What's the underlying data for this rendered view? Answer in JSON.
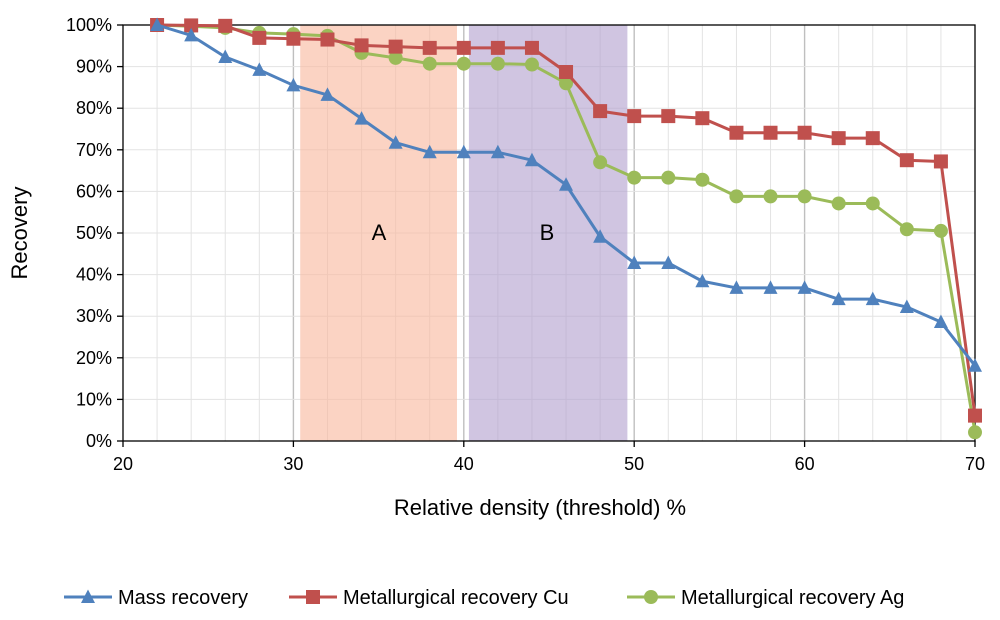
{
  "chart_data": {
    "type": "line",
    "title": "",
    "xlabel": "Relative density (threshold) %",
    "ylabel": "Recovery",
    "xlim": [
      20,
      70
    ],
    "ylim": [
      0,
      100
    ],
    "x_ticks": [
      20,
      30,
      40,
      50,
      60,
      70
    ],
    "x_tick_labels": [
      "20",
      "30",
      "40",
      "50",
      "60",
      "70"
    ],
    "y_ticks": [
      0,
      10,
      20,
      30,
      40,
      50,
      60,
      70,
      80,
      90,
      100
    ],
    "y_tick_labels": [
      "0%",
      "10%",
      "20%",
      "30%",
      "40%",
      "50%",
      "60%",
      "70%",
      "80%",
      "90%",
      "100%"
    ],
    "grid": true,
    "legend_position": "bottom",
    "x": [
      22,
      24,
      26,
      28,
      30,
      32,
      34,
      36,
      38,
      40,
      42,
      44,
      46,
      48,
      50,
      52,
      54,
      56,
      58,
      60,
      62,
      64,
      66,
      68,
      70
    ],
    "series": [
      {
        "name": "Mass recovery",
        "color": "#4f81bd",
        "marker": "triangle",
        "values": [
          100,
          97.5,
          92.3,
          89.2,
          85.5,
          83.2,
          77.5,
          71.7,
          69.4,
          69.4,
          69.4,
          67.5,
          61.6,
          49.1,
          42.8,
          42.8,
          38.4,
          36.8,
          36.8,
          36.8,
          34.1,
          34.1,
          32.2,
          28.6,
          18.1
        ]
      },
      {
        "name": "Metallurgical recovery Cu",
        "color": "#c0504d",
        "marker": "square",
        "values": [
          100,
          99.9,
          99.8,
          96.9,
          96.7,
          96.5,
          95.1,
          94.8,
          94.5,
          94.5,
          94.5,
          94.5,
          88.7,
          79.3,
          78.1,
          78.1,
          77.6,
          74.1,
          74.1,
          74.1,
          72.8,
          72.8,
          67.5,
          67.2,
          6.1
        ]
      },
      {
        "name": "Metallurgical recovery Ag",
        "color": "#9bbb59",
        "marker": "circle",
        "values": [
          100,
          99.7,
          99.3,
          98.1,
          97.8,
          97.4,
          93.3,
          92.1,
          90.7,
          90.7,
          90.7,
          90.5,
          86.0,
          67.0,
          63.3,
          63.3,
          62.8,
          58.8,
          58.8,
          58.8,
          57.1,
          57.1,
          50.9,
          50.5,
          2.1
        ]
      }
    ],
    "regions": [
      {
        "label": "A",
        "x_start": 30.4,
        "x_end": 39.6,
        "color": "#f8b89e"
      },
      {
        "label": "B",
        "x_start": 40.3,
        "x_end": 49.6,
        "color": "#b3a2cf"
      }
    ]
  }
}
